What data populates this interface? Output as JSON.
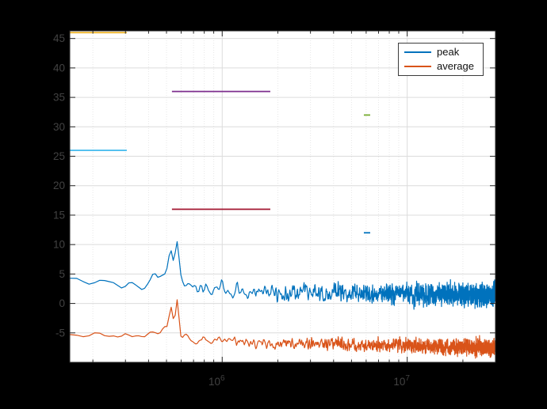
{
  "window": {
    "background": "#000000",
    "plot_background": "#ffffff"
  },
  "legend": {
    "items": [
      {
        "label": "peak",
        "color": "#0072BD"
      },
      {
        "label": "average",
        "color": "#D95319"
      }
    ]
  },
  "chart_data": {
    "type": "line",
    "title": "",
    "xlabel": "",
    "ylabel": "",
    "x_axis": {
      "scale": "log",
      "min": 150000,
      "max": 30000000,
      "major_ticks": [
        1000000,
        10000000
      ],
      "major_tick_labels": [
        {
          "base": "10",
          "exp": "6"
        },
        {
          "base": "10",
          "exp": "7"
        }
      ]
    },
    "y_axis": {
      "min": -10,
      "max": 46.3,
      "ticks": [
        -5,
        0,
        5,
        10,
        15,
        20,
        25,
        30,
        35,
        40,
        45
      ]
    },
    "grid": {
      "major_color": "#dcdcdc",
      "minor_color": "#e7e7e7",
      "minor_style": "dotted",
      "axis_color": "#262626",
      "tick_label_color": "#424242"
    },
    "series": [
      {
        "name": "peak",
        "color": "#0072BD",
        "points": 2200,
        "seed": 1,
        "baseline": [
          [
            5.176,
            3.9
          ],
          [
            5.3,
            3.2
          ],
          [
            5.45,
            2.9
          ],
          [
            5.55,
            3.1
          ],
          [
            5.65,
            3.2
          ],
          [
            5.9,
            2.6
          ],
          [
            6.1,
            2.1
          ],
          [
            6.5,
            1.8
          ],
          [
            7.0,
            1.6
          ],
          [
            7.477,
            1.4
          ]
        ],
        "peaks": [
          {
            "lf": 5.7,
            "w": 0.055,
            "a": 1.6
          },
          {
            "lf": 5.722,
            "w": 0.011,
            "a": 4.8
          },
          {
            "lf": 5.757,
            "w": 0.011,
            "a": 6.8
          }
        ],
        "noise": {
          "base": 1.1,
          "slope": 0.7
        },
        "summary": "noisy spectrum ~4 at 150 kHz falling to ~1.5, peak ~10.5 near 580 kHz"
      },
      {
        "name": "average",
        "color": "#D95319",
        "points": 2200,
        "seed": 2,
        "baseline": [
          [
            5.176,
            -5.1
          ],
          [
            5.35,
            -5.5
          ],
          [
            5.5,
            -5.4
          ],
          [
            5.65,
            -5.5
          ],
          [
            5.9,
            -6.3
          ],
          [
            6.1,
            -6.6
          ],
          [
            6.5,
            -6.9
          ],
          [
            7.0,
            -7.2
          ],
          [
            7.477,
            -7.5
          ]
        ],
        "peaks": [
          {
            "lf": 5.7,
            "w": 0.05,
            "a": 1.3
          },
          {
            "lf": 5.722,
            "w": 0.01,
            "a": 4.2
          },
          {
            "lf": 5.757,
            "w": 0.009,
            "a": 6.0
          }
        ],
        "noise": {
          "base": 0.65,
          "slope": 0.55
        },
        "summary": "noisy spectrum ~-5 at 150 kHz falling to ~-7.5, peak ~0.8 near 580 kHz"
      }
    ],
    "limit_segments": [
      {
        "name": "band1-peak-limit",
        "y": 46,
        "f_start": 150000,
        "f_end": 305000,
        "color": "#EDB120"
      },
      {
        "name": "band2-peak-limit",
        "y": 36,
        "f_start": 535000,
        "f_end": 1820000,
        "color": "#7E2F8E"
      },
      {
        "name": "band3-peak-limit",
        "y": 32,
        "f_start": 5830000,
        "f_end": 6310000,
        "color": "#77AC30"
      },
      {
        "name": "band1-average-limit",
        "y": 26,
        "f_start": 150000,
        "f_end": 305000,
        "color": "#4DBEEE"
      },
      {
        "name": "band2-average-limit",
        "y": 16,
        "f_start": 535000,
        "f_end": 1820000,
        "color": "#A2142F"
      },
      {
        "name": "band3-average-limit",
        "y": 12,
        "f_start": 5830000,
        "f_end": 6310000,
        "color": "#0072BD"
      }
    ],
    "legend_position": "northeast"
  }
}
